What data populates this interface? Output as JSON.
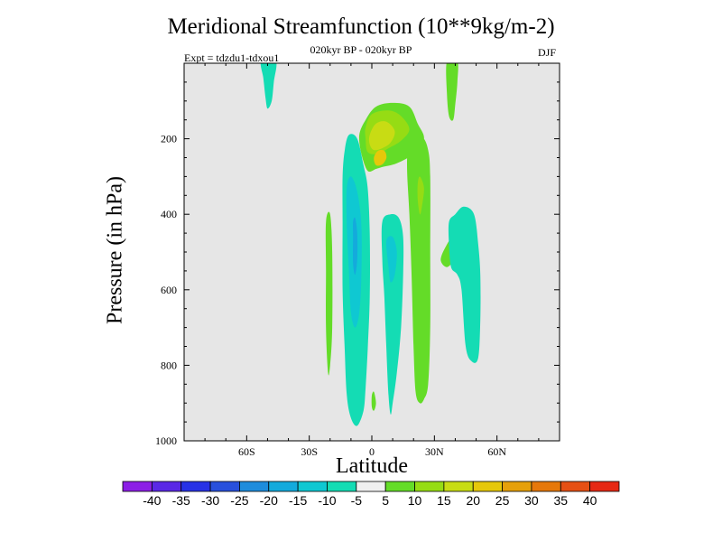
{
  "chart_data": {
    "type": "heatmap",
    "title": "Meridional Streamfunction (10**9kg/m-2)",
    "subtitle": "020kyr BP - 020kyr BP",
    "expt_label": "Expt = tdzdu1-tdxou1",
    "season_label": "DJF",
    "xlabel": "Latitude",
    "ylabel": "Pressure (in hPa)",
    "xlim": [
      -90,
      90
    ],
    "ylim": [
      1000,
      0
    ],
    "x_ticks": [
      {
        "value": -60,
        "label": "60S"
      },
      {
        "value": -30,
        "label": "30S"
      },
      {
        "value": 0,
        "label": "0"
      },
      {
        "value": 30,
        "label": "30N"
      },
      {
        "value": 60,
        "label": "60N"
      }
    ],
    "y_ticks": [
      {
        "value": 200,
        "label": "200"
      },
      {
        "value": 400,
        "label": "400"
      },
      {
        "value": 600,
        "label": "600"
      },
      {
        "value": 800,
        "label": "800"
      },
      {
        "value": 1000,
        "label": "1000"
      }
    ],
    "background_color": "#e6e6e6",
    "contour_levels": [
      -40,
      -35,
      -30,
      -25,
      -20,
      -15,
      -10,
      -5,
      5,
      10,
      15,
      20,
      25,
      30,
      35,
      40
    ],
    "colorbar": {
      "colors": [
        "#8c1ee6",
        "#5a28e6",
        "#2832e6",
        "#2850dc",
        "#1e8cdc",
        "#14aadc",
        "#0fc8d2",
        "#14dcb4",
        "#f0f0f0",
        "#64dc28",
        "#96dc14",
        "#c8dc14",
        "#e6c80a",
        "#e6a00a",
        "#e6780a",
        "#e65014",
        "#e62814"
      ],
      "labels": [
        "-40",
        "-35",
        "-30",
        "-25",
        "-20",
        "-15",
        "-10",
        "-5",
        "5",
        "10",
        "15",
        "20",
        "25",
        "30",
        "35",
        "40"
      ]
    },
    "regions": [
      {
        "name": "nh-upper-green-cell",
        "value": 7,
        "points": [
          [
            -3,
            150
          ],
          [
            2,
            115
          ],
          [
            10,
            105
          ],
          [
            18,
            115
          ],
          [
            22,
            160
          ],
          [
            25,
            200
          ],
          [
            20,
            240
          ],
          [
            12,
            265
          ],
          [
            5,
            275
          ],
          [
            2,
            280
          ],
          [
            -2,
            285
          ],
          [
            -5,
            240
          ],
          [
            -6,
            190
          ]
        ]
      },
      {
        "name": "nh-upper-yellowgreen",
        "value": 12,
        "points": [
          [
            -3,
            170
          ],
          [
            0,
            135
          ],
          [
            8,
            125
          ],
          [
            14,
            140
          ],
          [
            18,
            175
          ],
          [
            14,
            205
          ],
          [
            8,
            225
          ],
          [
            3,
            240
          ],
          [
            -2,
            235
          ],
          [
            -3,
            200
          ]
        ]
      },
      {
        "name": "nh-upper-yellow",
        "value": 17,
        "points": [
          [
            -1,
            190
          ],
          [
            2,
            160
          ],
          [
            7,
            155
          ],
          [
            11,
            180
          ],
          [
            9,
            210
          ],
          [
            5,
            225
          ],
          [
            1,
            230
          ],
          [
            -1,
            215
          ]
        ]
      },
      {
        "name": "nh-core-gold",
        "value": 22,
        "points": [
          [
            1,
            250
          ],
          [
            3,
            232
          ],
          [
            6,
            232
          ],
          [
            7,
            250
          ],
          [
            5,
            268
          ],
          [
            2,
            270
          ]
        ]
      },
      {
        "name": "nh-column-green",
        "value": 7,
        "points": [
          [
            18,
            200
          ],
          [
            24,
            195
          ],
          [
            27,
            230
          ],
          [
            28,
            300
          ],
          [
            28,
            500
          ],
          [
            28,
            700
          ],
          [
            27,
            850
          ],
          [
            25,
            890
          ],
          [
            23,
            900
          ],
          [
            21,
            870
          ],
          [
            20,
            750
          ],
          [
            19,
            550
          ],
          [
            18,
            400
          ],
          [
            17,
            300
          ],
          [
            17,
            240
          ]
        ]
      },
      {
        "name": "nh-column-yellowgreen",
        "value": 11,
        "points": [
          [
            22,
            320
          ],
          [
            23,
            300
          ],
          [
            25,
            330
          ],
          [
            24,
            380
          ],
          [
            23,
            400
          ],
          [
            22,
            360
          ]
        ]
      },
      {
        "name": "nh-mid-green",
        "value": 6,
        "points": [
          [
            33,
            520
          ],
          [
            36,
            480
          ],
          [
            40,
            450
          ],
          [
            44,
            445
          ],
          [
            46,
            470
          ],
          [
            44,
            500
          ],
          [
            40,
            520
          ],
          [
            36,
            540
          ]
        ]
      },
      {
        "name": "nh-top-green",
        "value": 6,
        "points": [
          [
            36,
            -5
          ],
          [
            41,
            -5
          ],
          [
            41,
            50
          ],
          [
            40,
            110
          ],
          [
            39,
            150
          ],
          [
            37,
            140
          ],
          [
            36,
            80
          ]
        ]
      },
      {
        "name": "sh-edge-green",
        "value": 6,
        "points": [
          [
            -22,
            420
          ],
          [
            -20,
            400
          ],
          [
            -19,
            500
          ],
          [
            -19,
            700
          ],
          [
            -20,
            800
          ],
          [
            -21,
            820
          ],
          [
            -22,
            700
          ],
          [
            -22,
            550
          ]
        ]
      },
      {
        "name": "sh-equator-green",
        "value": 6,
        "points": [
          [
            0,
            880
          ],
          [
            1,
            870
          ],
          [
            2,
            900
          ],
          [
            1,
            920
          ],
          [
            0,
            910
          ]
        ]
      },
      {
        "name": "sh-column-cyan",
        "value": -8,
        "points": [
          [
            -13,
            230
          ],
          [
            -11,
            190
          ],
          [
            -7,
            200
          ],
          [
            -4,
            270
          ],
          [
            -2,
            330
          ],
          [
            -1,
            450
          ],
          [
            -1,
            620
          ],
          [
            -2,
            760
          ],
          [
            -3,
            860
          ],
          [
            -4,
            920
          ],
          [
            -7,
            960
          ],
          [
            -10,
            940
          ],
          [
            -12,
            880
          ],
          [
            -13,
            760
          ],
          [
            -14,
            600
          ],
          [
            -14,
            420
          ],
          [
            -14,
            300
          ]
        ]
      },
      {
        "name": "sh-column-blue",
        "value": -12,
        "points": [
          [
            -12,
            330
          ],
          [
            -10,
            300
          ],
          [
            -7,
            340
          ],
          [
            -5,
            430
          ],
          [
            -5,
            560
          ],
          [
            -6,
            660
          ],
          [
            -8,
            700
          ],
          [
            -10,
            660
          ],
          [
            -11,
            550
          ],
          [
            -12,
            430
          ]
        ]
      },
      {
        "name": "sh-column-darkblue",
        "value": -18,
        "points": [
          [
            -9,
            420
          ],
          [
            -8,
            410
          ],
          [
            -7,
            450
          ],
          [
            -7,
            520
          ],
          [
            -8,
            560
          ],
          [
            -9,
            530
          ],
          [
            -9,
            460
          ]
        ]
      },
      {
        "name": "nh-lower-cyan",
        "value": -7,
        "points": [
          [
            5,
            420
          ],
          [
            9,
            400
          ],
          [
            13,
            410
          ],
          [
            15,
            460
          ],
          [
            15,
            560
          ],
          [
            14,
            700
          ],
          [
            12,
            820
          ],
          [
            10,
            900
          ],
          [
            9,
            930
          ],
          [
            8,
            880
          ],
          [
            7,
            760
          ],
          [
            6,
            620
          ],
          [
            5,
            520
          ]
        ]
      },
      {
        "name": "nh-lower-blue",
        "value": -11,
        "points": [
          [
            7,
            470
          ],
          [
            10,
            460
          ],
          [
            12,
            500
          ],
          [
            11,
            560
          ],
          [
            9,
            580
          ],
          [
            8,
            540
          ]
        ]
      },
      {
        "name": "nh-right-cyan",
        "value": -6,
        "points": [
          [
            37,
            420
          ],
          [
            40,
            400
          ],
          [
            44,
            380
          ],
          [
            49,
            400
          ],
          [
            51,
            480
          ],
          [
            52,
            560
          ],
          [
            52,
            680
          ],
          [
            51,
            780
          ],
          [
            48,
            790
          ],
          [
            45,
            750
          ],
          [
            43,
            600
          ],
          [
            41,
            560
          ],
          [
            38,
            540
          ],
          [
            37,
            480
          ]
        ]
      },
      {
        "name": "sh-top-cyan",
        "value": -6,
        "points": [
          [
            -53,
            -5
          ],
          [
            -46,
            -5
          ],
          [
            -47,
            50
          ],
          [
            -48,
            100
          ],
          [
            -50,
            120
          ],
          [
            -51,
            90
          ],
          [
            -52,
            40
          ]
        ]
      }
    ]
  }
}
